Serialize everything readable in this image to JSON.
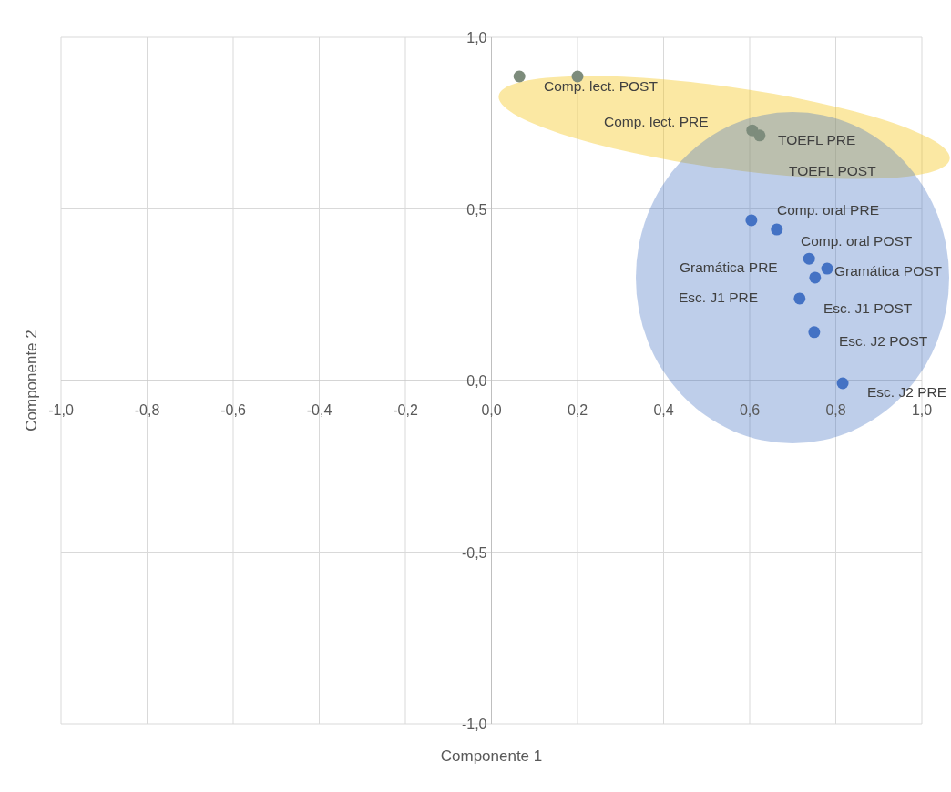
{
  "chart_data": {
    "type": "scatter",
    "xlabel": "Componente 1",
    "ylabel": "Componente 2",
    "xlim": [
      -1,
      1
    ],
    "ylim": [
      -1,
      1
    ],
    "xticks": [
      {
        "value": -1,
        "label": "-1,0"
      },
      {
        "value": -0.8,
        "label": "-0,8"
      },
      {
        "value": -0.6,
        "label": "-0,6"
      },
      {
        "value": -0.4,
        "label": "-0,4"
      },
      {
        "value": -0.2,
        "label": "-0,2"
      },
      {
        "value": 0,
        "label": "0,0"
      },
      {
        "value": 0.2,
        "label": "0,2"
      },
      {
        "value": 0.4,
        "label": "0,4"
      },
      {
        "value": 0.6,
        "label": "0,6"
      },
      {
        "value": 0.8,
        "label": "0,8"
      },
      {
        "value": 1,
        "label": "1,0"
      }
    ],
    "yticks": [
      {
        "value": -1,
        "label": "-1,0"
      },
      {
        "value": -0.5,
        "label": "-0,5"
      },
      {
        "value": 0,
        "label": "0,0"
      },
      {
        "value": 0.5,
        "label": "0,5"
      },
      {
        "value": 1,
        "label": "1,0"
      }
    ],
    "grid": true,
    "marker": "circle",
    "series": [
      {
        "color": "#7d8c7c",
        "x": [
          0.065,
          0.2,
          0.606,
          0.623
        ],
        "values": [
          0.886,
          0.886,
          0.729,
          0.714
        ]
      },
      {
        "color": "#4472c4",
        "x": [
          0.604,
          0.663,
          0.738,
          0.78,
          0.752,
          0.716,
          0.75,
          0.816
        ],
        "values": [
          0.467,
          0.44,
          0.355,
          0.326,
          0.3,
          0.239,
          0.141,
          -0.008
        ]
      }
    ],
    "annotations": [
      "Comp. lect. POST",
      "Comp. lect. PRE",
      "TOEFL PRE",
      "TOEFL POST",
      "Comp. oral PRE",
      "Comp. oral POST",
      "Gramática PRE",
      "Gramática POST",
      "Esc. J1 PRE",
      "Esc. J1 POST",
      "Esc. J2 POST",
      "Esc. J2 PRE"
    ]
  }
}
